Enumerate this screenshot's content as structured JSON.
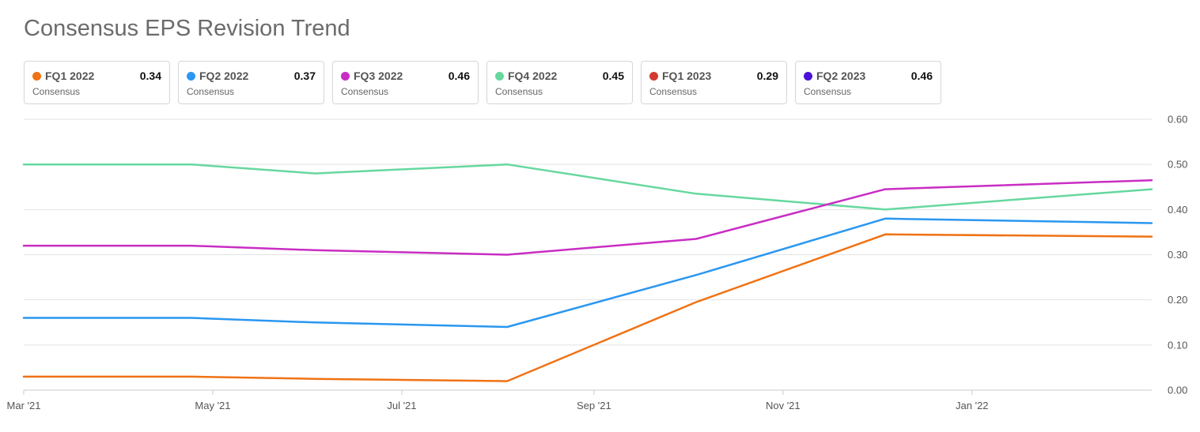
{
  "title": "Consensus EPS Revision Trend",
  "legend": [
    {
      "name": "FQ1 2022",
      "value": "0.34",
      "sub": "Consensus",
      "color": "#f07214"
    },
    {
      "name": "FQ2 2022",
      "value": "0.37",
      "sub": "Consensus",
      "color": "#2a97f0"
    },
    {
      "name": "FQ3 2022",
      "value": "0.46",
      "sub": "Consensus",
      "color": "#c92dc4"
    },
    {
      "name": "FQ4 2022",
      "value": "0.45",
      "sub": "Consensus",
      "color": "#66d89e"
    },
    {
      "name": "FQ1 2023",
      "value": "0.29",
      "sub": "Consensus",
      "color": "#d43a2f"
    },
    {
      "name": "FQ2 2023",
      "value": "0.46",
      "sub": "Consensus",
      "color": "#4a12d6"
    }
  ],
  "chart_data": {
    "type": "line",
    "x_ticks": [
      "Mar '21",
      "May '21",
      "Jul '21",
      "Sep '21",
      "Nov '21",
      "Jan '22"
    ],
    "x_tick_dates": [
      "2021-03-01",
      "2021-05-01",
      "2021-07-01",
      "2021-09-01",
      "2021-11-01",
      "2022-01-01"
    ],
    "x_range": [
      "2021-03-01",
      "2022-02-28"
    ],
    "y_ticks": [
      "0.00",
      "0.10",
      "0.20",
      "0.30",
      "0.40",
      "0.50",
      "0.60"
    ],
    "ylim": [
      0,
      0.6
    ],
    "grid": true,
    "y_axis_position": "right",
    "series": [
      {
        "name": "FQ4 2022",
        "color": "#66d89e",
        "points": [
          [
            "2021-03-01",
            0.5
          ],
          [
            "2021-04-24",
            0.5
          ],
          [
            "2021-06-03",
            0.48
          ],
          [
            "2021-08-04",
            0.5
          ],
          [
            "2021-10-04",
            0.435
          ],
          [
            "2021-12-04",
            0.4
          ],
          [
            "2022-02-28",
            0.445
          ]
        ]
      },
      {
        "name": "FQ3 2022",
        "color": "#c92dc4",
        "points": [
          [
            "2021-03-01",
            0.32
          ],
          [
            "2021-04-24",
            0.32
          ],
          [
            "2021-06-03",
            0.31
          ],
          [
            "2021-08-04",
            0.3
          ],
          [
            "2021-10-04",
            0.335
          ],
          [
            "2021-12-04",
            0.445
          ],
          [
            "2022-02-28",
            0.465
          ]
        ]
      },
      {
        "name": "FQ2 2022",
        "color": "#2a97f0",
        "points": [
          [
            "2021-03-01",
            0.16
          ],
          [
            "2021-04-24",
            0.16
          ],
          [
            "2021-06-03",
            0.15
          ],
          [
            "2021-08-04",
            0.14
          ],
          [
            "2021-10-04",
            0.255
          ],
          [
            "2021-12-04",
            0.38
          ],
          [
            "2022-02-28",
            0.37
          ]
        ]
      },
      {
        "name": "FQ1 2022",
        "color": "#f07214",
        "points": [
          [
            "2021-03-01",
            0.03
          ],
          [
            "2021-04-24",
            0.03
          ],
          [
            "2021-06-03",
            0.025
          ],
          [
            "2021-08-04",
            0.02
          ],
          [
            "2021-10-04",
            0.195
          ],
          [
            "2021-12-04",
            0.345
          ],
          [
            "2022-02-28",
            0.34
          ]
        ]
      }
    ]
  }
}
